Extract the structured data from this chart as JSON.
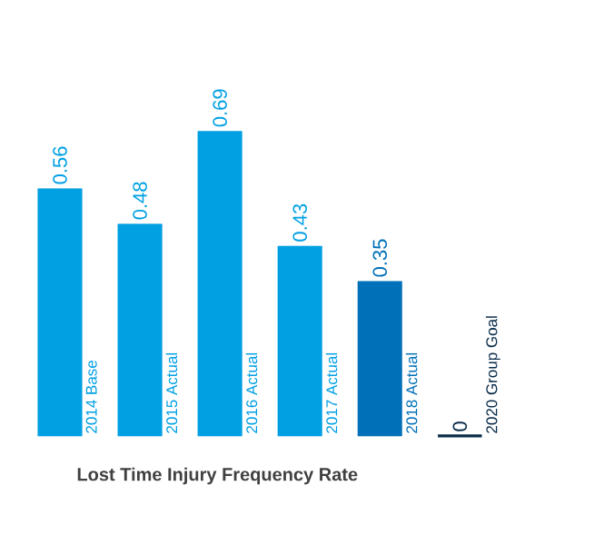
{
  "chart_data": {
    "type": "bar",
    "title": "Lost Time Injury Frequency Rate",
    "categories": [
      "2014 Base",
      "2015 Actual",
      "2016 Actual",
      "2017 Actual",
      "2018 Actual",
      "2020 Group Goal"
    ],
    "values": [
      0.56,
      0.48,
      0.69,
      0.43,
      0.35,
      0
    ],
    "colors": [
      "#00a0e3",
      "#00a0e3",
      "#00a0e3",
      "#00a0e3",
      "#0070b8",
      "#0a2c4a"
    ],
    "data_labels": true
  }
}
